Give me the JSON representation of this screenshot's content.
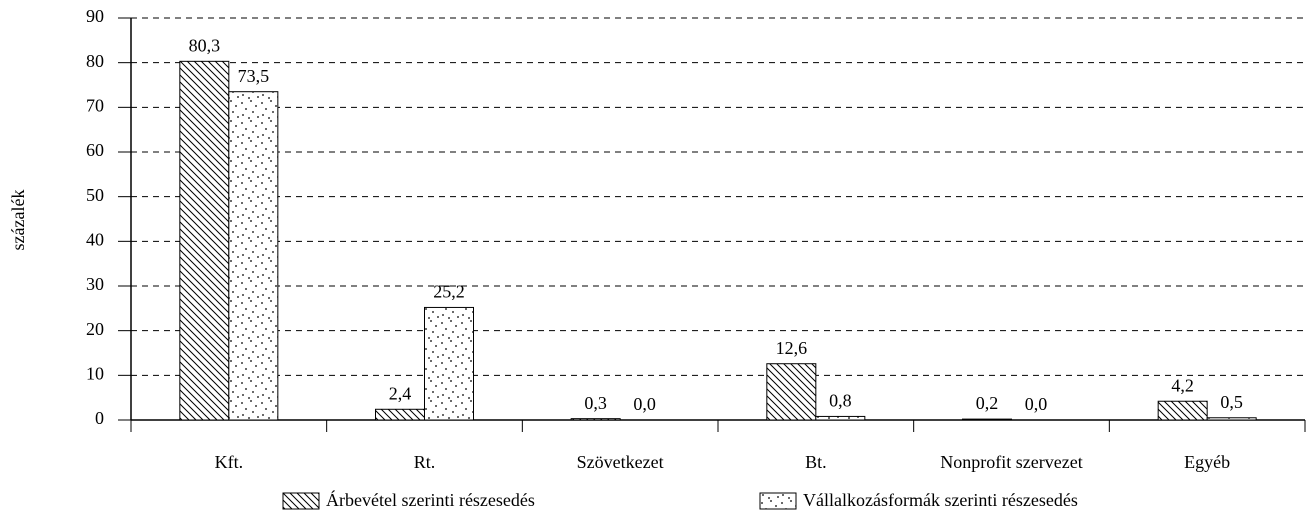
{
  "chart_data": {
    "type": "bar",
    "ylabel": "százalék",
    "categories": [
      "Kft.",
      "Rt.",
      "Szövetkezet",
      "Bt.",
      "Nonprofit szervezet",
      "Egyéb"
    ],
    "series": [
      {
        "name": "Árbevétel szerinti részesedés",
        "color": "#000000",
        "pattern": "hatch",
        "values": [
          80.3,
          2.4,
          0.3,
          12.6,
          0.2,
          4.2
        ],
        "value_labels": [
          "80,3",
          "2,4",
          "0,3",
          "12,6",
          "0,2",
          "4,2"
        ]
      },
      {
        "name": "Vállalkozásformák szerinti részesedés",
        "color": "#000000",
        "pattern": "dots",
        "values": [
          73.5,
          25.2,
          0.0,
          0.8,
          0.0,
          0.5
        ],
        "value_labels": [
          "73,5",
          "25,2",
          "0,0",
          "0,8",
          "0,0",
          "0,5"
        ]
      }
    ],
    "ylim": [
      0,
      90
    ],
    "yticks": [
      0,
      10,
      20,
      30,
      40,
      50,
      60,
      70,
      80,
      90
    ],
    "grid": true,
    "legend": "bottom"
  }
}
